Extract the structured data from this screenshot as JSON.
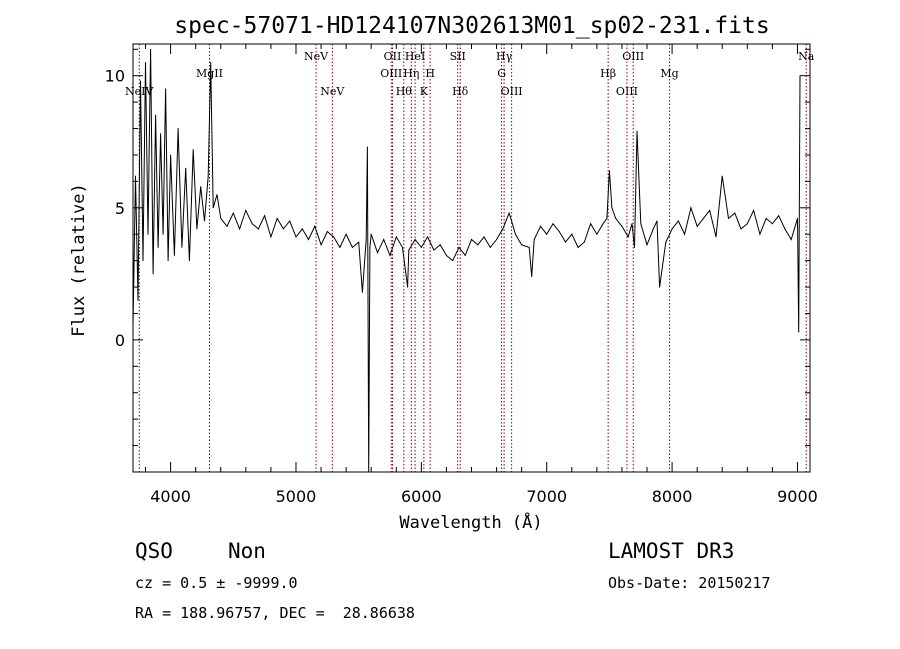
{
  "chart_data": {
    "type": "line",
    "title": "spec-57071-HD124107N302613M01_sp02-231.fits",
    "xlabel": "Wavelength (Å)",
    "ylabel": "Flux (relative)",
    "xlim": [
      3700,
      9100
    ],
    "ylim": [
      -5,
      11.2
    ],
    "xticks": [
      4000,
      5000,
      6000,
      7000,
      8000,
      9000
    ],
    "xticklabels": [
      "4000",
      "5000",
      "6000",
      "7000",
      "8000",
      "9000"
    ],
    "yticks": [
      0,
      5,
      10
    ],
    "yticklabels": [
      "0",
      "5",
      "10"
    ],
    "series": [
      {
        "name": "flux",
        "x": [
          3700,
          3720,
          3740,
          3760,
          3780,
          3800,
          3820,
          3840,
          3860,
          3880,
          3900,
          3920,
          3940,
          3960,
          3980,
          4000,
          4030,
          4060,
          4090,
          4120,
          4150,
          4180,
          4210,
          4240,
          4270,
          4300,
          4320,
          4340,
          4370,
          4400,
          4450,
          4500,
          4550,
          4600,
          4650,
          4700,
          4750,
          4800,
          4850,
          4900,
          4950,
          5000,
          5050,
          5100,
          5150,
          5200,
          5250,
          5300,
          5350,
          5400,
          5450,
          5500,
          5530,
          5560,
          5570,
          5580,
          5590,
          5600,
          5650,
          5700,
          5750,
          5800,
          5850,
          5890,
          5900,
          5950,
          6000,
          6050,
          6100,
          6150,
          6200,
          6250,
          6300,
          6350,
          6400,
          6450,
          6500,
          6550,
          6600,
          6650,
          6700,
          6720,
          6750,
          6800,
          6860,
          6880,
          6900,
          6950,
          7000,
          7050,
          7100,
          7150,
          7200,
          7250,
          7300,
          7350,
          7400,
          7450,
          7480,
          7500,
          7520,
          7550,
          7600,
          7650,
          7680,
          7700,
          7720,
          7750,
          7800,
          7850,
          7880,
          7900,
          7950,
          8000,
          8050,
          8100,
          8150,
          8200,
          8250,
          8300,
          8350,
          8400,
          8450,
          8500,
          8550,
          8600,
          8650,
          8700,
          8750,
          8800,
          8850,
          8900,
          8950,
          9000,
          9010,
          9020
        ],
        "y": [
          0.5,
          6.2,
          1.5,
          9.8,
          3.0,
          10.5,
          4.0,
          11.0,
          2.5,
          8.5,
          3.5,
          7.8,
          4.0,
          9.5,
          3.0,
          7.0,
          3.2,
          8.0,
          3.5,
          6.5,
          3.0,
          7.2,
          4.2,
          5.8,
          4.5,
          6.2,
          10.5,
          5.0,
          5.5,
          4.6,
          4.3,
          4.8,
          4.2,
          4.9,
          4.4,
          4.2,
          4.7,
          3.9,
          4.6,
          4.2,
          4.5,
          3.9,
          4.2,
          3.8,
          4.3,
          3.6,
          4.1,
          3.9,
          3.5,
          4.0,
          3.5,
          3.7,
          1.8,
          3.8,
          7.3,
          -5.0,
          3.5,
          4.0,
          3.3,
          3.8,
          3.2,
          3.9,
          3.5,
          2.0,
          3.4,
          3.8,
          3.5,
          3.9,
          3.4,
          3.6,
          3.2,
          3.0,
          3.5,
          3.2,
          3.8,
          3.6,
          3.9,
          3.5,
          3.8,
          4.2,
          4.8,
          4.5,
          4.0,
          3.6,
          3.5,
          2.4,
          3.8,
          4.3,
          4.0,
          4.4,
          4.1,
          3.7,
          4.0,
          3.5,
          3.7,
          4.4,
          4.0,
          4.4,
          4.6,
          6.4,
          5.0,
          4.6,
          4.3,
          3.9,
          4.4,
          3.5,
          7.9,
          4.4,
          3.6,
          4.2,
          4.5,
          2.0,
          3.7,
          4.2,
          4.5,
          4.0,
          5.0,
          4.3,
          4.6,
          4.9,
          3.9,
          6.2,
          4.6,
          4.8,
          4.2,
          4.4,
          4.9,
          4.0,
          4.6,
          4.4,
          4.7,
          4.2,
          3.8,
          4.6,
          0.3,
          10.0
        ]
      }
    ],
    "spectral_lines": [
      {
        "label": "NeIV",
        "x": 3750,
        "row": 2
      },
      {
        "label": "MgII",
        "x": 4310,
        "row": 1
      },
      {
        "label": "NeV",
        "x": 5160,
        "row": 0
      },
      {
        "label": "NeV",
        "x": 5290,
        "row": 2
      },
      {
        "label": "OII",
        "x": 5770,
        "row": 0
      },
      {
        "label": "OIII",
        "x": 5760,
        "row": 1
      },
      {
        "label": "Hθ",
        "x": 5860,
        "row": 2
      },
      {
        "label": "HeI",
        "x": 5950,
        "row": 0
      },
      {
        "label": "Hη",
        "x": 5920,
        "row": 1
      },
      {
        "label": "H",
        "x": 6070,
        "row": 1
      },
      {
        "label": "K",
        "x": 6020,
        "row": 2
      },
      {
        "label": "SII",
        "x": 6290,
        "row": 0
      },
      {
        "label": "Hδ",
        "x": 6310,
        "row": 2
      },
      {
        "label": "Hγ",
        "x": 6660,
        "row": 0
      },
      {
        "label": "G",
        "x": 6640,
        "row": 1
      },
      {
        "label": "OIII",
        "x": 6720,
        "row": 2
      },
      {
        "label": "Hβ",
        "x": 7490,
        "row": 1
      },
      {
        "label": "OIII",
        "x": 7690,
        "row": 0
      },
      {
        "label": "OIII",
        "x": 7640,
        "row": 2
      },
      {
        "label": "Mg",
        "x": 7980,
        "row": 1
      },
      {
        "label": "Na",
        "x": 9070,
        "row": 0
      }
    ]
  },
  "info": {
    "class": "QSO",
    "subclass": "Non",
    "cz": "cz = 0.5 ± -9999.0",
    "radec": "RA = 188.96757, DEC =  28.86638",
    "survey": "LAMOST DR3",
    "obsdate": "Obs-Date: 20150217"
  },
  "colors": {
    "line": "#8b0000",
    "spectrum": "#000000"
  }
}
